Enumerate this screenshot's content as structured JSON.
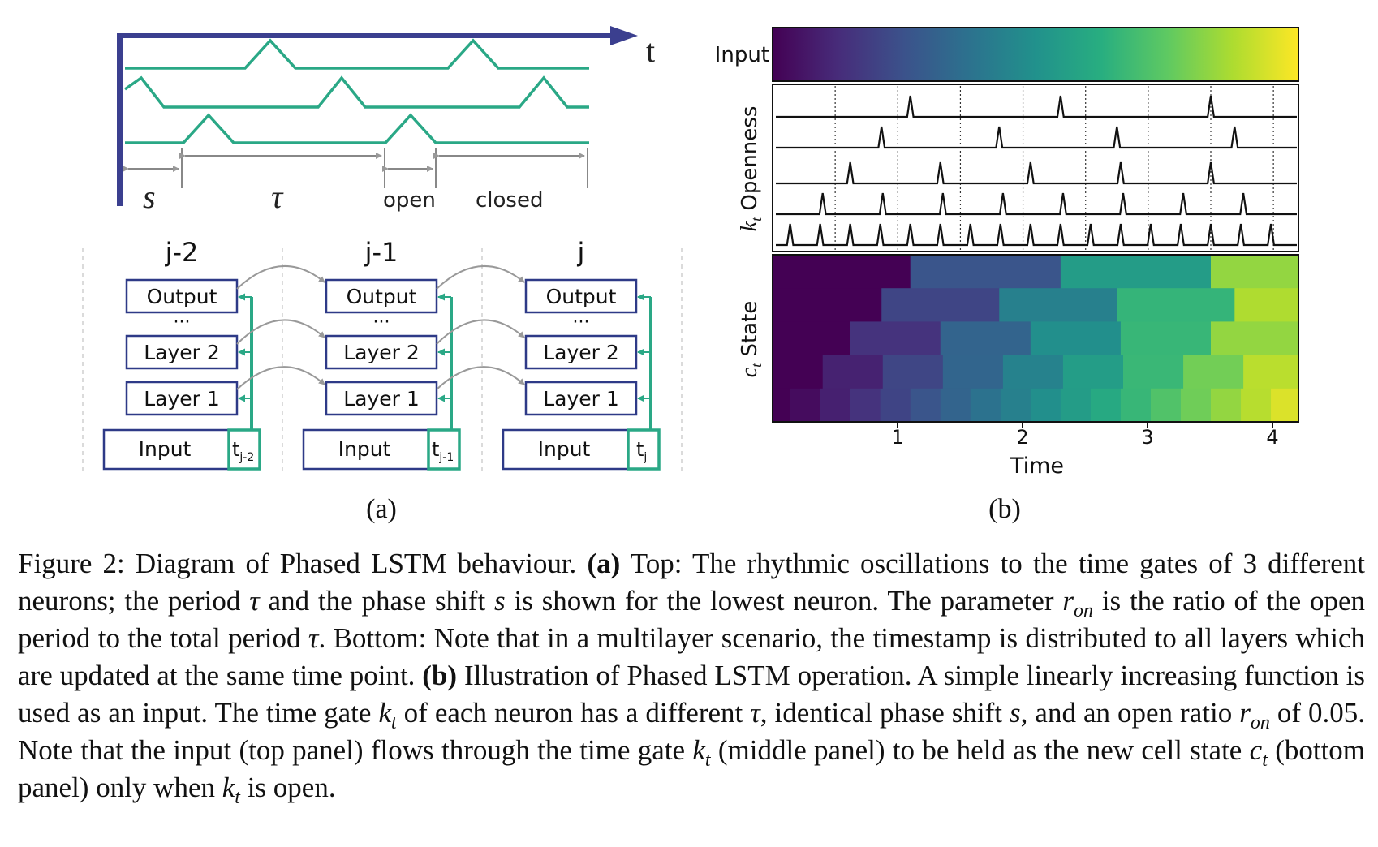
{
  "panel_a": {
    "axis_label": "t",
    "s_label": "s",
    "tau_label": "τ",
    "open_label": "open",
    "closed_label": "closed",
    "columns": [
      {
        "header": "j-2",
        "output": "Output",
        "dots": "···",
        "layer2": "Layer 2",
        "layer1": "Layer 1",
        "input": "Input",
        "time_base": "t",
        "time_sub": "j-2"
      },
      {
        "header": "j-1",
        "output": "Output",
        "dots": "···",
        "layer2": "Layer 2",
        "layer1": "Layer 1",
        "input": "Input",
        "time_base": "t",
        "time_sub": "j-1"
      },
      {
        "header": "j",
        "output": "Output",
        "dots": "···",
        "layer2": "Layer 2",
        "layer1": "Layer 1",
        "input": "Input",
        "time_base": "t",
        "time_sub": "j"
      }
    ],
    "sublabel": "(a)"
  },
  "panel_b": {
    "input_label": "Input",
    "openness_label_symbol": "k",
    "openness_label_sub": "t",
    "openness_label_text": "Openness",
    "state_label_symbol": "c",
    "state_label_sub": "t",
    "state_label_text": "State",
    "xlabel": "Time",
    "xticks": [
      "1",
      "2",
      "3",
      "4"
    ],
    "sublabel": "(b)"
  },
  "colors": {
    "axis_navy": "#3b3f8f",
    "wave_green": "#2aa886",
    "arrow_gray": "#999999",
    "box_navy": "#2e3a87"
  },
  "caption": {
    "figure_label": "Figure 2:",
    "title": "Diagram of Phased LSTM behaviour.",
    "a_tag": "(a)",
    "a_text_1": "Top: The rhythmic oscillations to the time gates of 3 different neurons; the period",
    "tau": "τ",
    "a_text_2": "and the phase shift",
    "s": "s",
    "a_text_3": "is shown for the lowest neuron. The parameter",
    "r_base": "r",
    "r_sub": "on",
    "a_text_4": "is the ratio of the open period to the total period",
    "a_text_5": ". Bottom: Note that in a multilayer scenario, the timestamp is distributed to all layers which are updated at the same time point.",
    "b_tag": "(b)",
    "b_text_1": "Illustration of Phased LSTM operation. A simple linearly increasing function is used as an input. The time gate",
    "k_base": "k",
    "k_sub": "t",
    "b_text_2": "of each neuron has a different",
    "b_text_3": ", identical phase shift",
    "b_text_4": ", and an open ratio",
    "b_text_5": "of",
    "open_ratio": "0.05",
    "b_text_6": ". Note that the input (top panel) flows through the time gate",
    "b_text_7": "(middle panel) to be held as the new cell state",
    "c_base": "c",
    "b_text_8": "(bottom panel) only when",
    "b_text_9": "is open."
  }
}
